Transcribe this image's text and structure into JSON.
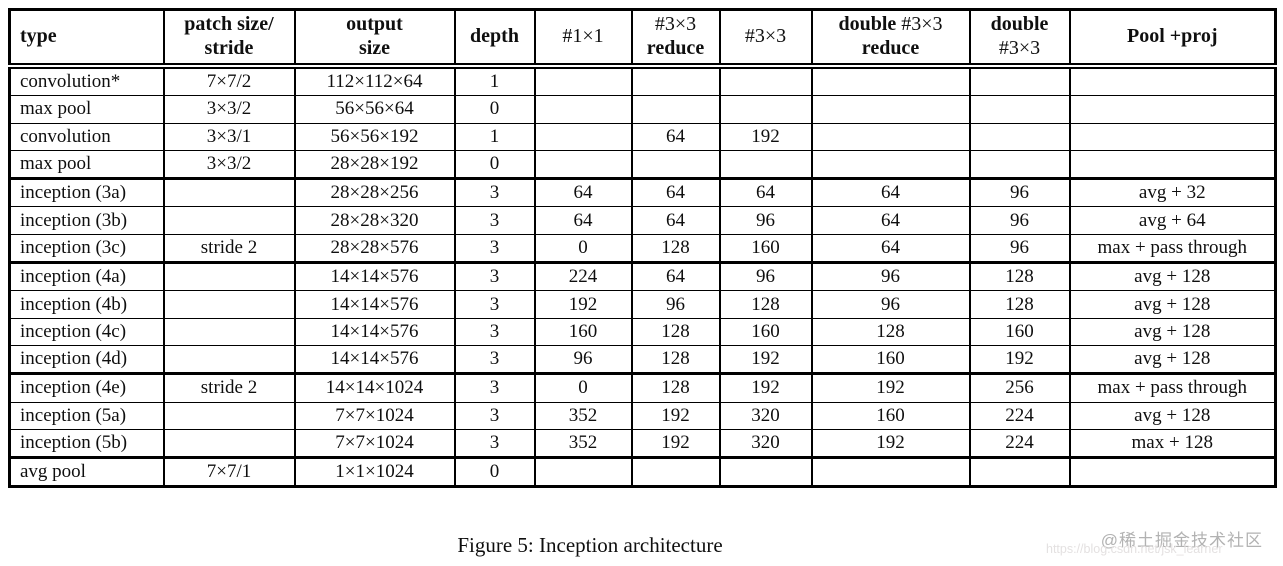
{
  "table": {
    "headers": [
      "type",
      "patch size/\nstride",
      "output\nsize",
      "depth",
      "#1×1",
      "#3×3\nreduce",
      "#3×3",
      "double #3×3\nreduce",
      "double\n#3×3",
      "Pool +proj"
    ],
    "rows": [
      [
        "convolution*",
        "7×7/2",
        "112×112×64",
        "1",
        "",
        "",
        "",
        "",
        "",
        ""
      ],
      [
        "max pool",
        "3×3/2",
        "56×56×64",
        "0",
        "",
        "",
        "",
        "",
        "",
        ""
      ],
      [
        "convolution",
        "3×3/1",
        "56×56×192",
        "1",
        "",
        "64",
        "192",
        "",
        "",
        ""
      ],
      [
        "max pool",
        "3×3/2",
        "28×28×192",
        "0",
        "",
        "",
        "",
        "",
        "",
        ""
      ],
      [
        "inception (3a)",
        "",
        "28×28×256",
        "3",
        "64",
        "64",
        "64",
        "64",
        "96",
        "avg + 32"
      ],
      [
        "inception (3b)",
        "",
        "28×28×320",
        "3",
        "64",
        "64",
        "96",
        "64",
        "96",
        "avg + 64"
      ],
      [
        "inception (3c)",
        "stride 2",
        "28×28×576",
        "3",
        "0",
        "128",
        "160",
        "64",
        "96",
        "max + pass through"
      ],
      [
        "inception (4a)",
        "",
        "14×14×576",
        "3",
        "224",
        "64",
        "96",
        "96",
        "128",
        "avg + 128"
      ],
      [
        "inception (4b)",
        "",
        "14×14×576",
        "3",
        "192",
        "96",
        "128",
        "96",
        "128",
        "avg + 128"
      ],
      [
        "inception (4c)",
        "",
        "14×14×576",
        "3",
        "160",
        "128",
        "160",
        "128",
        "160",
        "avg + 128"
      ],
      [
        "inception (4d)",
        "",
        "14×14×576",
        "3",
        "96",
        "128",
        "192",
        "160",
        "192",
        "avg + 128"
      ],
      [
        "inception (4e)",
        "stride 2",
        "14×14×1024",
        "3",
        "0",
        "128",
        "192",
        "192",
        "256",
        "max + pass through"
      ],
      [
        "inception (5a)",
        "",
        "7×7×1024",
        "3",
        "352",
        "192",
        "320",
        "160",
        "224",
        "avg + 128"
      ],
      [
        "inception (5b)",
        "",
        "7×7×1024",
        "3",
        "352",
        "192",
        "320",
        "192",
        "224",
        "max + 128"
      ],
      [
        "avg pool",
        "7×7/1",
        "1×1×1024",
        "0",
        "",
        "",
        "",
        "",
        "",
        ""
      ]
    ],
    "thick_top_rows": [
      4,
      7,
      11,
      14
    ]
  },
  "caption": "Figure 5: Inception architecture",
  "watermark": {
    "text": "@稀土掘金技术社区",
    "url": "https://blog.csdn.net/jsk_learner"
  }
}
